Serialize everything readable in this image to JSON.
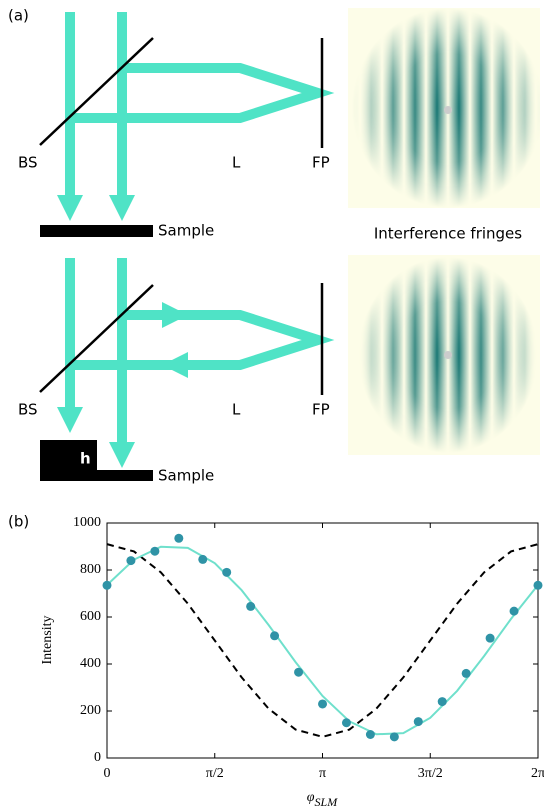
{
  "panel_a": {
    "label": "(a)",
    "top": {
      "bs": "BS",
      "lens": "L",
      "fp": "FP",
      "sample": "Sample",
      "fringes_caption": "Interference fringes"
    },
    "bottom": {
      "bs": "BS",
      "lens": "L",
      "fp": "FP",
      "step": "h",
      "sample": "Sample"
    }
  },
  "chart_data": {
    "type": "scatter",
    "panel_label": "(b)",
    "ylabel": "Intensity",
    "xlabel": {
      "symbol": "φ",
      "subscript": "SLM"
    },
    "xlim": [
      0,
      6.2832
    ],
    "ylim": [
      0,
      1000
    ],
    "xticks": [
      0,
      {
        "value": 1.5708,
        "label": "π/2"
      },
      {
        "value": 3.1416,
        "label": "π"
      },
      {
        "value": 4.7124,
        "label": "3π/2"
      },
      {
        "value": 6.2832,
        "label": "2π"
      }
    ],
    "yticks": [
      0,
      200,
      400,
      600,
      800,
      1000
    ],
    "series": [
      {
        "type": "scatter",
        "color": "#2f93a6",
        "x": [
          0,
          0.349,
          0.698,
          1.047,
          1.396,
          1.745,
          2.094,
          2.443,
          2.793,
          3.142,
          3.491,
          3.84,
          4.189,
          4.538,
          4.887,
          5.236,
          5.585,
          5.934,
          6.283
        ],
        "values": [
          735,
          840,
          880,
          935,
          845,
          790,
          645,
          520,
          365,
          230,
          150,
          100,
          90,
          155,
          240,
          360,
          510,
          625,
          735
        ]
      },
      {
        "type": "line",
        "color": "#6fe0cc",
        "dash": false,
        "x": [
          0,
          0.393,
          0.785,
          1.178,
          1.571,
          1.963,
          2.356,
          2.749,
          3.142,
          3.534,
          3.927,
          4.32,
          4.712,
          5.105,
          5.498,
          5.89,
          6.283
        ],
        "values": [
          736,
          844,
          899,
          894,
          829,
          714,
          566,
          408,
          264,
          156,
          101,
          106,
          171,
          286,
          434,
          592,
          736
        ]
      },
      {
        "type": "line",
        "color": "#000000",
        "dash": true,
        "x": [
          0,
          0.393,
          0.785,
          1.178,
          1.571,
          1.963,
          2.356,
          2.749,
          3.142,
          3.534,
          3.927,
          4.32,
          4.712,
          5.105,
          5.498,
          5.89,
          6.283
        ],
        "values": [
          910,
          879,
          790,
          657,
          500,
          343,
          210,
          121,
          90,
          121,
          210,
          343,
          500,
          657,
          790,
          879,
          910
        ]
      }
    ]
  }
}
